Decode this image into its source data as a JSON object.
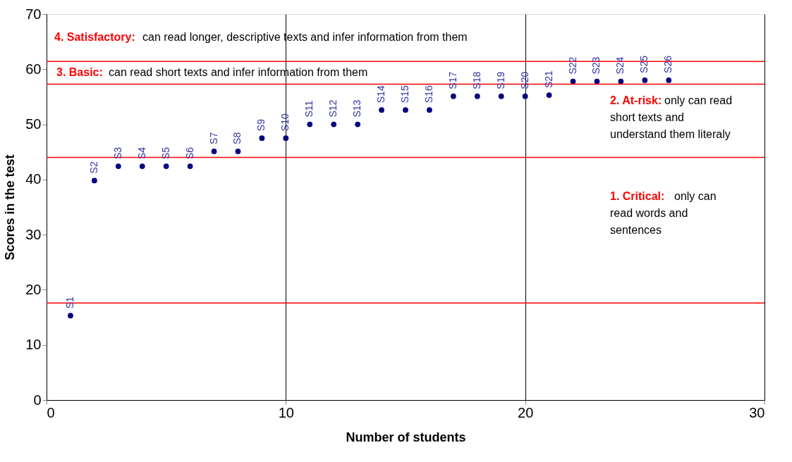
{
  "chart_data": {
    "type": "scatter",
    "xlabel": "Number of students",
    "ylabel": "Scores in the test",
    "x": [
      1,
      2,
      3,
      4,
      5,
      6,
      7,
      8,
      9,
      10,
      11,
      12,
      13,
      14,
      15,
      16,
      17,
      18,
      19,
      20,
      21,
      22,
      23,
      24,
      25,
      26
    ],
    "series": [
      {
        "color": "#000080",
        "values": [
          15.3,
          39.8,
          42.4,
          42.4,
          42.4,
          42.4,
          45.1,
          45.1,
          47.5,
          47.5,
          50,
          50,
          50,
          52.6,
          52.6,
          52.6,
          55.1,
          55.1,
          55.1,
          55.1,
          55.3,
          57.8,
          57.8,
          57.8,
          58,
          58
        ]
      }
    ],
    "xlim": [
      0,
      30
    ],
    "xticks": [
      0,
      10,
      20,
      30
    ],
    "ylim": [
      0,
      70
    ],
    "yticks": [
      0,
      10,
      20,
      30,
      40,
      50,
      60,
      70
    ],
    "grid": "x",
    "marker": "circle",
    "ref_lines": [
      {
        "axis": "y",
        "value": 17.6,
        "color": "#ff0000"
      },
      {
        "axis": "y",
        "value": 44,
        "color": "#ff0000"
      },
      {
        "axis": "y",
        "value": 57.3,
        "color": "#ff0000"
      },
      {
        "axis": "y",
        "value": 61.4,
        "color": "#ff0000"
      }
    ],
    "annotations": [
      "4. Satisfactory:",
      "3. Basic:",
      "2. At-risk:",
      "1. Critical:",
      "can read longer, descriptive texts and infer information from them",
      "can read short texts and infer information from them",
      "only can read",
      "short texts and",
      "understand them literaly",
      "only can",
      "read words and",
      "sentences",
      {
        "text": "S1",
        "x": 1,
        "y": 15.3
      },
      {
        "text": "S2",
        "x": 2,
        "y": 39.8
      },
      {
        "text": "S3",
        "x": 3,
        "y": 42.4
      },
      {
        "text": "S4",
        "x": 4,
        "y": 42.4
      },
      {
        "text": "S5",
        "x": 5,
        "y": 42.4
      },
      {
        "text": "S6",
        "x": 6,
        "y": 42.4
      },
      {
        "text": "S7",
        "x": 7,
        "y": 45.1
      },
      {
        "text": "S8",
        "x": 8,
        "y": 45.1
      },
      {
        "text": "S9",
        "x": 9,
        "y": 47.5
      },
      {
        "text": "S10",
        "x": 10,
        "y": 47.5
      },
      {
        "text": "S11",
        "x": 11,
        "y": 50
      },
      {
        "text": "S12",
        "x": 12,
        "y": 50
      },
      {
        "text": "S13",
        "x": 13,
        "y": 50
      },
      {
        "text": "S14",
        "x": 14,
        "y": 52.6
      },
      {
        "text": "S15",
        "x": 15,
        "y": 52.6
      },
      {
        "text": "S16",
        "x": 16,
        "y": 52.6
      },
      {
        "text": "S17",
        "x": 17,
        "y": 55.1
      },
      {
        "text": "S18",
        "x": 18,
        "y": 55.1
      },
      {
        "text": "S19",
        "x": 19,
        "y": 55.1
      },
      {
        "text": "S20",
        "x": 20,
        "y": 55.1
      },
      {
        "text": "S21",
        "x": 21,
        "y": 55.3
      },
      {
        "text": "S22",
        "x": 22,
        "y": 57.8
      },
      {
        "text": "S23",
        "x": 23,
        "y": 57.8
      },
      {
        "text": "S24",
        "x": 24,
        "y": 57.8
      },
      {
        "text": "S25",
        "x": 25,
        "y": 58
      },
      {
        "text": "S26",
        "x": 26,
        "y": 58
      }
    ]
  }
}
